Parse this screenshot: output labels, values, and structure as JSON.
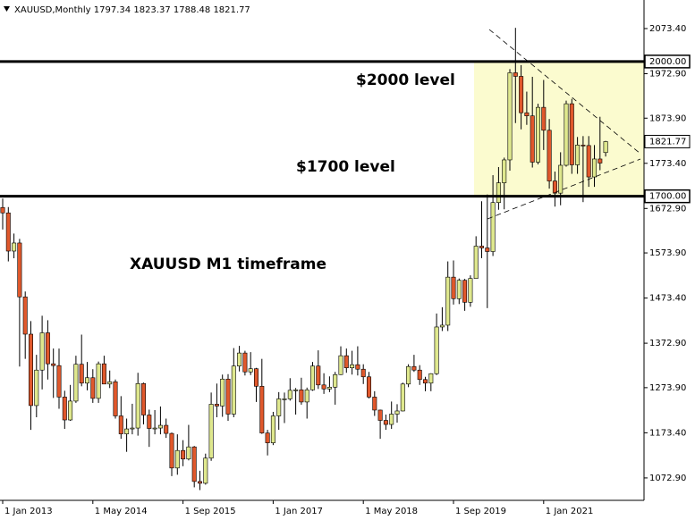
{
  "chart_data": {
    "type": "candlestick",
    "symbol": "XAUUSD,Monthly",
    "annotations": [
      "$2000 level",
      "$1700 level",
      "XAUUSD M1 timeframe"
    ],
    "levels": [
      {
        "value": 2000,
        "label": "2000.00"
      },
      {
        "value": 1700,
        "label": "1700.00"
      }
    ],
    "up_color": "#dfe88e",
    "down_color": "#e0582c",
    "highlight_color": "#fbfbcf",
    "ylim": [
      1023,
      2137
    ],
    "yticks": [
      {
        "value": 2073.4,
        "label": "2073.40"
      },
      {
        "value": 1972.9,
        "label": "1972.90"
      },
      {
        "value": 1873.9,
        "label": "1873.90"
      },
      {
        "value": 1773.4,
        "label": "1773.40"
      },
      {
        "value": 1672.9,
        "label": "1672.90"
      },
      {
        "value": 1573.9,
        "label": "1573.90"
      },
      {
        "value": 1473.4,
        "label": "1473.40"
      },
      {
        "value": 1372.9,
        "label": "1372.90"
      },
      {
        "value": 1273.9,
        "label": "1273.90"
      },
      {
        "value": 1173.4,
        "label": "1173.40"
      },
      {
        "value": 1072.9,
        "label": "1072.90"
      }
    ],
    "xticks": [
      "1 Jan 2013",
      "1 May 2014",
      "1 Sep 2015",
      "1 Jan 2017",
      "1 May 2018",
      "1 Sep 2019",
      "1 Jan 2021"
    ],
    "x": [
      "1 Jan 2013",
      "1 Feb 2013",
      "1 Mar 2013",
      "1 Apr 2013",
      "1 May 2013",
      "1 Jun 2013",
      "1 Jul 2013",
      "1 Aug 2013",
      "1 Sep 2013",
      "1 Oct 2013",
      "1 Nov 2013",
      "1 Dec 2013",
      "1 Jan 2014",
      "1 Feb 2014",
      "1 Mar 2014",
      "1 Apr 2014",
      "1 May 2014",
      "1 Jun 2014",
      "1 Jul 2014",
      "1 Aug 2014",
      "1 Sep 2014",
      "1 Oct 2014",
      "1 Nov 2014",
      "1 Dec 2014",
      "1 Jan 2015",
      "1 Feb 2015",
      "1 Mar 2015",
      "1 Apr 2015",
      "1 May 2015",
      "1 Jun 2015",
      "1 Jul 2015",
      "1 Aug 2015",
      "1 Sep 2015",
      "1 Oct 2015",
      "1 Nov 2015",
      "1 Dec 2015",
      "1 Jan 2016",
      "1 Feb 2016",
      "1 Mar 2016",
      "1 Apr 2016",
      "1 May 2016",
      "1 Jun 2016",
      "1 Jul 2016",
      "1 Aug 2016",
      "1 Sep 2016",
      "1 Oct 2016",
      "1 Nov 2016",
      "1 Dec 2016",
      "1 Jan 2017",
      "1 Feb 2017",
      "1 Mar 2017",
      "1 Apr 2017",
      "1 May 2017",
      "1 Jun 2017",
      "1 Jul 2017",
      "1 Aug 2017",
      "1 Sep 2017",
      "1 Oct 2017",
      "1 Nov 2017",
      "1 Dec 2017",
      "1 Jan 2018",
      "1 Feb 2018",
      "1 Mar 2018",
      "1 Apr 2018",
      "1 May 2018",
      "1 Jun 2018",
      "1 Jul 2018",
      "1 Aug 2018",
      "1 Sep 2018",
      "1 Oct 2018",
      "1 Nov 2018",
      "1 Dec 2018",
      "1 Jan 2019",
      "1 Feb 2019",
      "1 Mar 2019",
      "1 Apr 2019",
      "1 May 2019",
      "1 Jun 2019",
      "1 Jul 2019",
      "1 Aug 2019",
      "1 Sep 2019",
      "1 Oct 2019",
      "1 Nov 2019",
      "1 Dec 2019",
      "1 Jan 2020",
      "1 Feb 2020",
      "1 Mar 2020",
      "1 Apr 2020",
      "1 May 2020",
      "1 Jun 2020",
      "1 Jul 2020",
      "1 Aug 2020",
      "1 Sep 2020",
      "1 Oct 2020",
      "1 Nov 2020",
      "1 Dec 2020",
      "1 Jan 2021",
      "1 Feb 2021",
      "1 Mar 2021",
      "1 Apr 2021",
      "1 May 2021",
      "1 Jun 2021",
      "1 Jul 2021",
      "1 Aug 2021",
      "1 Sep 2021",
      "1 Oct 2021",
      "1 Nov 2021",
      "1 Dec 2021"
    ],
    "ohlc": [
      [
        1675,
        1695,
        1626,
        1663
      ],
      [
        1663,
        1676,
        1555,
        1578
      ],
      [
        1578,
        1617,
        1562,
        1596
      ],
      [
        1596,
        1605,
        1321,
        1476
      ],
      [
        1476,
        1488,
        1338,
        1393
      ],
      [
        1393,
        1422,
        1180,
        1234
      ],
      [
        1234,
        1347,
        1208,
        1313
      ],
      [
        1313,
        1434,
        1270,
        1396
      ],
      [
        1396,
        1424,
        1292,
        1327
      ],
      [
        1327,
        1361,
        1251,
        1323
      ],
      [
        1323,
        1361,
        1227,
        1253
      ],
      [
        1253,
        1267,
        1182,
        1202
      ],
      [
        1202,
        1280,
        1200,
        1244
      ],
      [
        1244,
        1345,
        1240,
        1326
      ],
      [
        1326,
        1392,
        1277,
        1284
      ],
      [
        1284,
        1331,
        1268,
        1296
      ],
      [
        1296,
        1315,
        1240,
        1250
      ],
      [
        1250,
        1332,
        1240,
        1327
      ],
      [
        1327,
        1345,
        1282,
        1282
      ],
      [
        1282,
        1312,
        1273,
        1287
      ],
      [
        1287,
        1292,
        1205,
        1211
      ],
      [
        1211,
        1255,
        1160,
        1171
      ],
      [
        1171,
        1205,
        1131,
        1182
      ],
      [
        1182,
        1238,
        1170,
        1184
      ],
      [
        1184,
        1307,
        1167,
        1283
      ],
      [
        1283,
        1285,
        1192,
        1213
      ],
      [
        1213,
        1225,
        1142,
        1183
      ],
      [
        1183,
        1224,
        1170,
        1184
      ],
      [
        1184,
        1232,
        1170,
        1190
      ],
      [
        1190,
        1205,
        1162,
        1172
      ],
      [
        1172,
        1174,
        1077,
        1095
      ],
      [
        1095,
        1170,
        1080,
        1134
      ],
      [
        1134,
        1157,
        1099,
        1115
      ],
      [
        1115,
        1191,
        1112,
        1142
      ],
      [
        1142,
        1144,
        1052,
        1065
      ],
      [
        1065,
        1089,
        1046,
        1061
      ],
      [
        1061,
        1127,
        1058,
        1117
      ],
      [
        1117,
        1263,
        1111,
        1237
      ],
      [
        1237,
        1283,
        1208,
        1233
      ],
      [
        1233,
        1303,
        1209,
        1293
      ],
      [
        1293,
        1304,
        1200,
        1215
      ],
      [
        1215,
        1362,
        1208,
        1322
      ],
      [
        1322,
        1367,
        1310,
        1351
      ],
      [
        1351,
        1356,
        1301,
        1309
      ],
      [
        1309,
        1353,
        1302,
        1316
      ],
      [
        1316,
        1318,
        1242,
        1277
      ],
      [
        1277,
        1338,
        1171,
        1173
      ],
      [
        1173,
        1180,
        1123,
        1151
      ],
      [
        1151,
        1220,
        1146,
        1211
      ],
      [
        1211,
        1264,
        1180,
        1249
      ],
      [
        1249,
        1263,
        1195,
        1249
      ],
      [
        1249,
        1295,
        1245,
        1268
      ],
      [
        1268,
        1273,
        1214,
        1269
      ],
      [
        1269,
        1296,
        1236,
        1242
      ],
      [
        1242,
        1274,
        1205,
        1269
      ],
      [
        1269,
        1331,
        1267,
        1322
      ],
      [
        1322,
        1357,
        1271,
        1280
      ],
      [
        1280,
        1306,
        1260,
        1271
      ],
      [
        1271,
        1299,
        1264,
        1275
      ],
      [
        1275,
        1309,
        1236,
        1303
      ],
      [
        1303,
        1366,
        1302,
        1345
      ],
      [
        1345,
        1361,
        1307,
        1318
      ],
      [
        1318,
        1356,
        1303,
        1325
      ],
      [
        1325,
        1366,
        1301,
        1315
      ],
      [
        1315,
        1326,
        1282,
        1298
      ],
      [
        1298,
        1309,
        1250,
        1253
      ],
      [
        1253,
        1266,
        1211,
        1224
      ],
      [
        1224,
        1225,
        1160,
        1201
      ],
      [
        1201,
        1214,
        1180,
        1192
      ],
      [
        1192,
        1243,
        1182,
        1215
      ],
      [
        1215,
        1237,
        1196,
        1222
      ],
      [
        1222,
        1285,
        1221,
        1282
      ],
      [
        1282,
        1326,
        1275,
        1321
      ],
      [
        1321,
        1347,
        1309,
        1313
      ],
      [
        1313,
        1324,
        1280,
        1292
      ],
      [
        1292,
        1298,
        1266,
        1284
      ],
      [
        1284,
        1306,
        1266,
        1305
      ],
      [
        1305,
        1439,
        1302,
        1409
      ],
      [
        1409,
        1453,
        1400,
        1413
      ],
      [
        1413,
        1555,
        1400,
        1520
      ],
      [
        1520,
        1557,
        1459,
        1472
      ],
      [
        1472,
        1517,
        1460,
        1513
      ],
      [
        1513,
        1516,
        1445,
        1464
      ],
      [
        1464,
        1524,
        1454,
        1517
      ],
      [
        1517,
        1611,
        1517,
        1589
      ],
      [
        1589,
        1689,
        1562,
        1585
      ],
      [
        1585,
        1704,
        1451,
        1577
      ],
      [
        1577,
        1747,
        1567,
        1686
      ],
      [
        1686,
        1765,
        1670,
        1730
      ],
      [
        1730,
        1786,
        1671,
        1781
      ],
      [
        1781,
        1983,
        1757,
        1975
      ],
      [
        1975,
        2075,
        1863,
        1967
      ],
      [
        1967,
        1992,
        1849,
        1886
      ],
      [
        1886,
        1933,
        1859,
        1879
      ],
      [
        1879,
        1966,
        1764,
        1776
      ],
      [
        1776,
        1906,
        1771,
        1898
      ],
      [
        1898,
        1959,
        1803,
        1847
      ],
      [
        1847,
        1872,
        1717,
        1734
      ],
      [
        1734,
        1755,
        1677,
        1707
      ],
      [
        1707,
        1798,
        1680,
        1769
      ],
      [
        1769,
        1913,
        1766,
        1906
      ],
      [
        1906,
        1917,
        1750,
        1770
      ],
      [
        1770,
        1832,
        1750,
        1814
      ],
      [
        1814,
        1834,
        1687,
        1813
      ],
      [
        1813,
        1834,
        1721,
        1743
      ],
      [
        1743,
        1814,
        1721,
        1783
      ],
      [
        1783,
        1877,
        1758,
        1774
      ],
      [
        1797.34,
        1823.37,
        1788.48,
        1821.77
      ]
    ]
  }
}
